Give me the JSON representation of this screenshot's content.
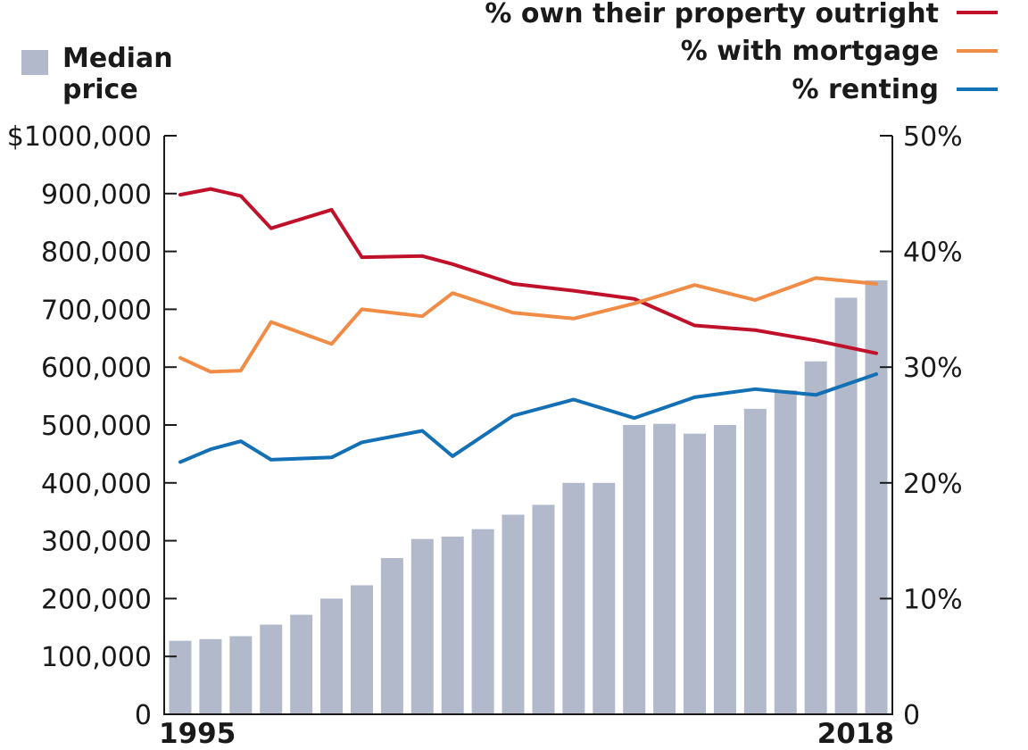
{
  "chart_data": {
    "type": "bar",
    "categories": [
      "1995",
      "1996",
      "1997",
      "1998",
      "1999",
      "2000",
      "2001",
      "2002",
      "2003",
      "2004",
      "2005",
      "2006",
      "2007",
      "2008",
      "2009",
      "2010",
      "2011",
      "2012",
      "2013",
      "2014",
      "2015",
      "2016",
      "2017",
      "2018"
    ],
    "x_tick_labels": [
      "1995",
      "2018"
    ],
    "bar_series": {
      "name": "Median price",
      "name_lines": [
        "Median",
        "price"
      ],
      "color": "#b2b9ca",
      "values": [
        127000,
        130000,
        135000,
        155000,
        172000,
        200000,
        223000,
        270000,
        303000,
        307000,
        320000,
        345000,
        362000,
        400000,
        400000,
        500000,
        502000,
        485000,
        500000,
        528000,
        560000,
        610000,
        720000,
        750000
      ]
    },
    "line_series": [
      {
        "name": "% own their property outright",
        "color": "#c0112b",
        "x": [
          1995,
          1996,
          1997,
          1998,
          2000,
          2001,
          2003,
          2004,
          2006,
          2008,
          2010,
          2012,
          2014,
          2016,
          2018
        ],
        "values": [
          44.9,
          45.4,
          44.8,
          42.0,
          43.6,
          39.5,
          39.6,
          38.9,
          37.2,
          36.6,
          35.9,
          33.6,
          33.2,
          32.3,
          31.2
        ]
      },
      {
        "name": "% with mortgage",
        "color": "#f08c45",
        "x": [
          1995,
          1996,
          1997,
          1998,
          2000,
          2001,
          2003,
          2004,
          2006,
          2008,
          2010,
          2012,
          2014,
          2016,
          2018
        ],
        "values": [
          30.8,
          29.6,
          29.7,
          33.9,
          32.0,
          35.0,
          34.4,
          36.4,
          34.7,
          34.2,
          35.5,
          37.1,
          35.8,
          37.7,
          37.2
        ]
      },
      {
        "name": "% renting",
        "color": "#1470b4",
        "x": [
          1995,
          1996,
          1997,
          1998,
          2000,
          2001,
          2003,
          2004,
          2006,
          2008,
          2010,
          2012,
          2014,
          2016,
          2018
        ],
        "values": [
          21.8,
          22.9,
          23.6,
          22.0,
          22.2,
          23.5,
          24.5,
          22.3,
          25.8,
          27.2,
          25.6,
          27.4,
          28.1,
          27.6,
          29.4
        ]
      }
    ],
    "y_left": {
      "ylim": [
        0,
        1000000
      ],
      "tick_values": [
        0,
        100000,
        200000,
        300000,
        400000,
        500000,
        600000,
        700000,
        800000,
        900000,
        1000000
      ],
      "tick_labels": [
        "0",
        "100,000",
        "200,000",
        "300,000",
        "400,000",
        "500,000",
        "600,000",
        "700,000",
        "800,000",
        "900,000",
        "$1000,000"
      ]
    },
    "y_right": {
      "ylim": [
        0,
        50
      ],
      "tick_values": [
        0,
        10,
        20,
        30,
        40,
        50
      ],
      "tick_labels": [
        "0",
        "10%",
        "20%",
        "30%",
        "40%",
        "50%"
      ]
    },
    "grid": false,
    "legend_placement": "top"
  }
}
